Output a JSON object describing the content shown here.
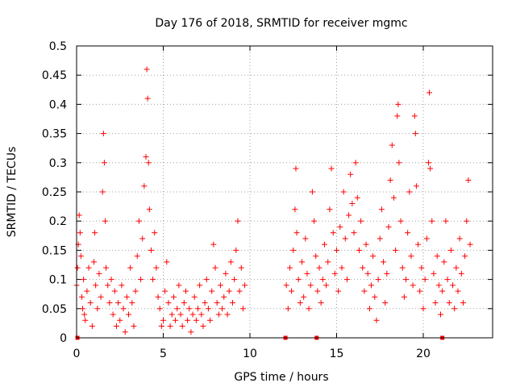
{
  "chart_data": {
    "type": "scatter",
    "title": "Day 176 of 2018, SRMTID for receiver mgmc",
    "xlabel": "GPS time / hours",
    "ylabel": "SRMTID / TECUs",
    "xlim": [
      0,
      24
    ],
    "ylim": [
      0,
      0.5
    ],
    "xticks": [
      "0",
      "5",
      "10",
      "15",
      "20"
    ],
    "yticks": [
      "0",
      "0.05",
      "0.1",
      "0.15",
      "0.2",
      "0.25",
      "0.3",
      "0.35",
      "0.4",
      "0.45",
      "0.5"
    ],
    "grid": true,
    "legend": "none",
    "marker": "+",
    "series_color": "#ff0000",
    "series": [
      {
        "name": "SRMTID",
        "points": [
          [
            0.0,
            0.09
          ],
          [
            0.05,
            0.12
          ],
          [
            0.1,
            0.16
          ],
          [
            0.15,
            0.21
          ],
          [
            0.2,
            0.18
          ],
          [
            0.25,
            0.14
          ],
          [
            0.3,
            0.07
          ],
          [
            0.35,
            0.05
          ],
          [
            0.4,
            0.1
          ],
          [
            0.45,
            0.04
          ],
          [
            0.5,
            0.03
          ],
          [
            0.6,
            0.08
          ],
          [
            0.7,
            0.12
          ],
          [
            0.8,
            0.06
          ],
          [
            0.9,
            0.02
          ],
          [
            1.0,
            0.13
          ],
          [
            1.05,
            0.18
          ],
          [
            1.1,
            0.09
          ],
          [
            1.2,
            0.05
          ],
          [
            1.3,
            0.11
          ],
          [
            1.4,
            0.07
          ],
          [
            1.5,
            0.25
          ],
          [
            1.55,
            0.35
          ],
          [
            1.6,
            0.3
          ],
          [
            1.65,
            0.2
          ],
          [
            1.7,
            0.12
          ],
          [
            1.8,
            0.09
          ],
          [
            1.9,
            0.06
          ],
          [
            2.0,
            0.1
          ],
          [
            2.1,
            0.04
          ],
          [
            2.2,
            0.08
          ],
          [
            2.3,
            0.02
          ],
          [
            2.4,
            0.06
          ],
          [
            2.5,
            0.03
          ],
          [
            2.6,
            0.09
          ],
          [
            2.7,
            0.05
          ],
          [
            2.8,
            0.01
          ],
          [
            2.9,
            0.07
          ],
          [
            3.0,
            0.04
          ],
          [
            3.1,
            0.12
          ],
          [
            3.2,
            0.06
          ],
          [
            3.3,
            0.02
          ],
          [
            3.4,
            0.08
          ],
          [
            3.5,
            0.14
          ],
          [
            3.6,
            0.2
          ],
          [
            3.7,
            0.1
          ],
          [
            3.8,
            0.17
          ],
          [
            3.9,
            0.26
          ],
          [
            4.0,
            0.31
          ],
          [
            4.05,
            0.46
          ],
          [
            4.1,
            0.41
          ],
          [
            4.15,
            0.3
          ],
          [
            4.2,
            0.22
          ],
          [
            4.3,
            0.15
          ],
          [
            4.4,
            0.1
          ],
          [
            4.5,
            0.18
          ],
          [
            4.6,
            0.12
          ],
          [
            4.7,
            0.07
          ],
          [
            4.8,
            0.05
          ],
          [
            4.9,
            0.02
          ],
          [
            5.0,
            0.03
          ],
          [
            5.1,
            0.08
          ],
          [
            5.2,
            0.13
          ],
          [
            5.3,
            0.06
          ],
          [
            5.4,
            0.02
          ],
          [
            5.5,
            0.04
          ],
          [
            5.6,
            0.07
          ],
          [
            5.7,
            0.03
          ],
          [
            5.8,
            0.05
          ],
          [
            5.9,
            0.09
          ],
          [
            6.0,
            0.04
          ],
          [
            6.1,
            0.02
          ],
          [
            6.2,
            0.06
          ],
          [
            6.3,
            0.08
          ],
          [
            6.4,
            0.03
          ],
          [
            6.5,
            0.05
          ],
          [
            6.6,
            0.01
          ],
          [
            6.7,
            0.04
          ],
          [
            6.8,
            0.07
          ],
          [
            6.9,
            0.03
          ],
          [
            7.0,
            0.05
          ],
          [
            7.1,
            0.09
          ],
          [
            7.2,
            0.04
          ],
          [
            7.3,
            0.02
          ],
          [
            7.4,
            0.06
          ],
          [
            7.5,
            0.1
          ],
          [
            7.6,
            0.05
          ],
          [
            7.7,
            0.03
          ],
          [
            7.8,
            0.08
          ],
          [
            7.9,
            0.16
          ],
          [
            8.0,
            0.12
          ],
          [
            8.1,
            0.06
          ],
          [
            8.2,
            0.04
          ],
          [
            8.3,
            0.09
          ],
          [
            8.4,
            0.05
          ],
          [
            8.5,
            0.07
          ],
          [
            8.6,
            0.11
          ],
          [
            8.7,
            0.04
          ],
          [
            8.8,
            0.08
          ],
          [
            8.9,
            0.13
          ],
          [
            9.0,
            0.06
          ],
          [
            9.1,
            0.1
          ],
          [
            9.2,
            0.15
          ],
          [
            9.3,
            0.2
          ],
          [
            9.4,
            0.08
          ],
          [
            9.5,
            0.12
          ],
          [
            9.6,
            0.05
          ],
          [
            9.7,
            0.09
          ],
          [
            12.1,
            0.09
          ],
          [
            12.2,
            0.05
          ],
          [
            12.3,
            0.12
          ],
          [
            12.4,
            0.08
          ],
          [
            12.5,
            0.15
          ],
          [
            12.6,
            0.22
          ],
          [
            12.65,
            0.29
          ],
          [
            12.7,
            0.18
          ],
          [
            12.8,
            0.1
          ],
          [
            12.9,
            0.06
          ],
          [
            13.0,
            0.13
          ],
          [
            13.1,
            0.07
          ],
          [
            13.2,
            0.17
          ],
          [
            13.3,
            0.11
          ],
          [
            13.4,
            0.05
          ],
          [
            13.5,
            0.09
          ],
          [
            13.6,
            0.25
          ],
          [
            13.7,
            0.2
          ],
          [
            13.8,
            0.14
          ],
          [
            13.9,
            0.08
          ],
          [
            14.0,
            0.12
          ],
          [
            14.1,
            0.06
          ],
          [
            14.2,
            0.1
          ],
          [
            14.3,
            0.16
          ],
          [
            14.4,
            0.09
          ],
          [
            14.5,
            0.13
          ],
          [
            14.6,
            0.22
          ],
          [
            14.7,
            0.29
          ],
          [
            14.8,
            0.18
          ],
          [
            14.9,
            0.11
          ],
          [
            15.0,
            0.15
          ],
          [
            15.1,
            0.08
          ],
          [
            15.2,
            0.19
          ],
          [
            15.3,
            0.12
          ],
          [
            15.4,
            0.25
          ],
          [
            15.5,
            0.17
          ],
          [
            15.6,
            0.1
          ],
          [
            15.7,
            0.21
          ],
          [
            15.8,
            0.28
          ],
          [
            15.9,
            0.23
          ],
          [
            16.0,
            0.18
          ],
          [
            16.1,
            0.3
          ],
          [
            16.2,
            0.24
          ],
          [
            16.3,
            0.15
          ],
          [
            16.4,
            0.2
          ],
          [
            16.5,
            0.12
          ],
          [
            16.6,
            0.08
          ],
          [
            16.7,
            0.16
          ],
          [
            16.8,
            0.11
          ],
          [
            16.9,
            0.05
          ],
          [
            17.0,
            0.09
          ],
          [
            17.1,
            0.14
          ],
          [
            17.2,
            0.07
          ],
          [
            17.3,
            0.03
          ],
          [
            17.4,
            0.1
          ],
          [
            17.5,
            0.17
          ],
          [
            17.6,
            0.22
          ],
          [
            17.7,
            0.13
          ],
          [
            17.8,
            0.06
          ],
          [
            17.9,
            0.11
          ],
          [
            18.0,
            0.19
          ],
          [
            18.1,
            0.27
          ],
          [
            18.2,
            0.33
          ],
          [
            18.3,
            0.24
          ],
          [
            18.4,
            0.15
          ],
          [
            18.5,
            0.38
          ],
          [
            18.55,
            0.4
          ],
          [
            18.6,
            0.3
          ],
          [
            18.7,
            0.2
          ],
          [
            18.8,
            0.12
          ],
          [
            18.9,
            0.07
          ],
          [
            19.0,
            0.1
          ],
          [
            19.1,
            0.18
          ],
          [
            19.2,
            0.25
          ],
          [
            19.3,
            0.14
          ],
          [
            19.4,
            0.09
          ],
          [
            19.5,
            0.38
          ],
          [
            19.55,
            0.35
          ],
          [
            19.6,
            0.26
          ],
          [
            19.7,
            0.16
          ],
          [
            19.8,
            0.08
          ],
          [
            19.9,
            0.12
          ],
          [
            20.0,
            0.05
          ],
          [
            20.1,
            0.1
          ],
          [
            20.2,
            0.17
          ],
          [
            20.3,
            0.3
          ],
          [
            20.35,
            0.42
          ],
          [
            20.4,
            0.29
          ],
          [
            20.5,
            0.2
          ],
          [
            20.6,
            0.11
          ],
          [
            20.7,
            0.06
          ],
          [
            20.8,
            0.14
          ],
          [
            20.9,
            0.09
          ],
          [
            21.0,
            0.04
          ],
          [
            21.1,
            0.08
          ],
          [
            21.2,
            0.13
          ],
          [
            21.3,
            0.2
          ],
          [
            21.4,
            0.1
          ],
          [
            21.5,
            0.06
          ],
          [
            21.6,
            0.15
          ],
          [
            21.7,
            0.09
          ],
          [
            21.8,
            0.05
          ],
          [
            21.9,
            0.12
          ],
          [
            22.0,
            0.08
          ],
          [
            22.1,
            0.17
          ],
          [
            22.2,
            0.11
          ],
          [
            22.3,
            0.06
          ],
          [
            22.4,
            0.14
          ],
          [
            22.5,
            0.2
          ],
          [
            22.6,
            0.27
          ],
          [
            22.7,
            0.16
          ]
        ]
      }
    ],
    "gap_markers": [
      [
        0.05,
        0
      ],
      [
        12.05,
        0
      ],
      [
        13.85,
        0
      ],
      [
        21.1,
        0
      ]
    ]
  }
}
